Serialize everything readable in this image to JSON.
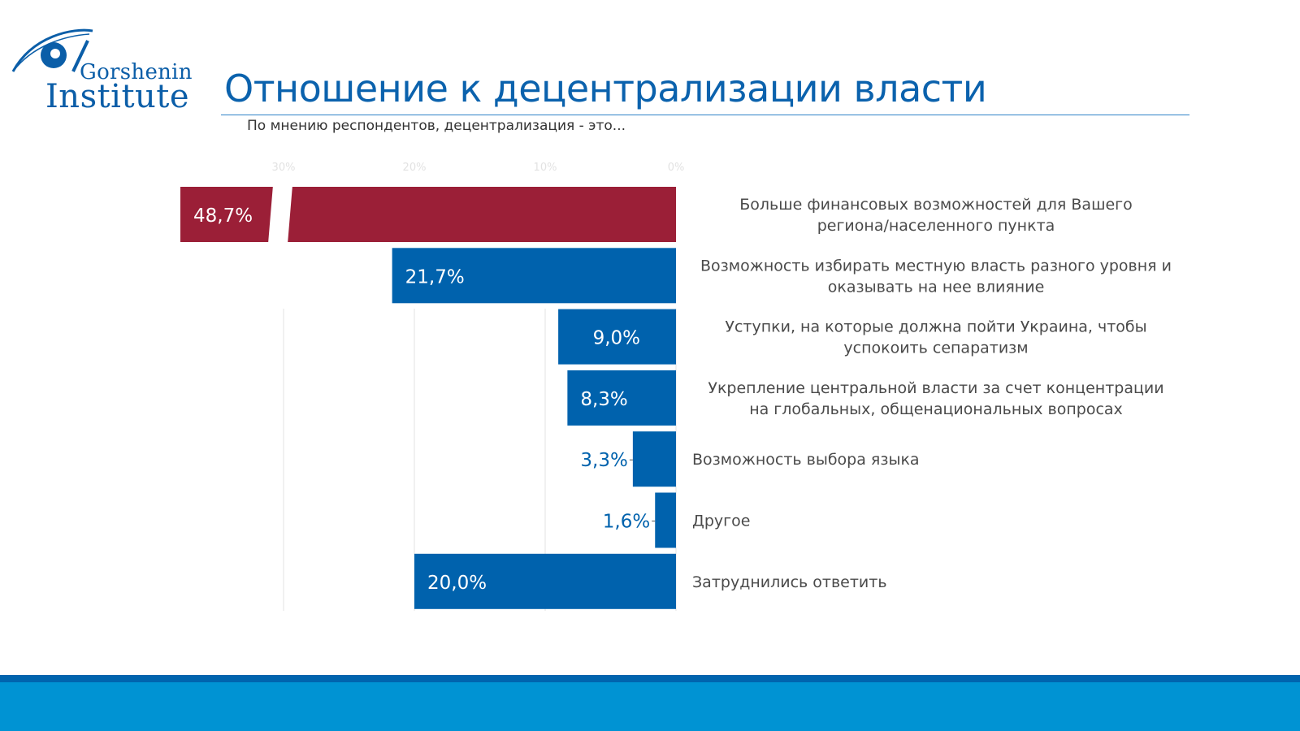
{
  "header": {
    "logo_top": "Gorshenin",
    "logo_bottom": "Institute",
    "title": "Отношение к децентрализации власти",
    "subtitle": "По мнению респондентов, децентрализация - это..."
  },
  "colors": {
    "accent": "#0b62ad",
    "highlight_bar": "#9b1f37",
    "bar": "#0062ad",
    "footer_dark": "#0064ae",
    "footer_light": "#0093d3"
  },
  "chart_data": {
    "type": "bar",
    "orientation": "horizontal",
    "direction": "right-to-left",
    "x_ticks": [
      "30%",
      "20%",
      "10%",
      "0%"
    ],
    "x_tick_values": [
      30,
      20,
      10,
      0
    ],
    "xlim": [
      0,
      38
    ],
    "axis_break": true,
    "grid": true,
    "categories": [
      "Больше финансовых возможностей для Вашего\nрегиона/населенного пункта",
      "Возможность избирать местную власть разного уровня и\nоказывать на нее влияние",
      "Уступки, на которые должна пойти Украина, чтобы\nуспокоить сепаратизм",
      "Укрепление  центральной  власти за счет концентрации\nна глобальных, общенациональных  вопросах",
      "Возможность выбора языка",
      "Другое",
      "Затруднились ответить"
    ],
    "values": [
      48.7,
      21.7,
      9.0,
      8.3,
      3.3,
      1.6,
      20.0
    ],
    "data_labels": [
      "48,7%",
      "21,7%",
      "9,0%",
      "8,3%",
      "3,3%",
      "1,6%",
      "20,0%"
    ],
    "highlight_index": 0
  }
}
